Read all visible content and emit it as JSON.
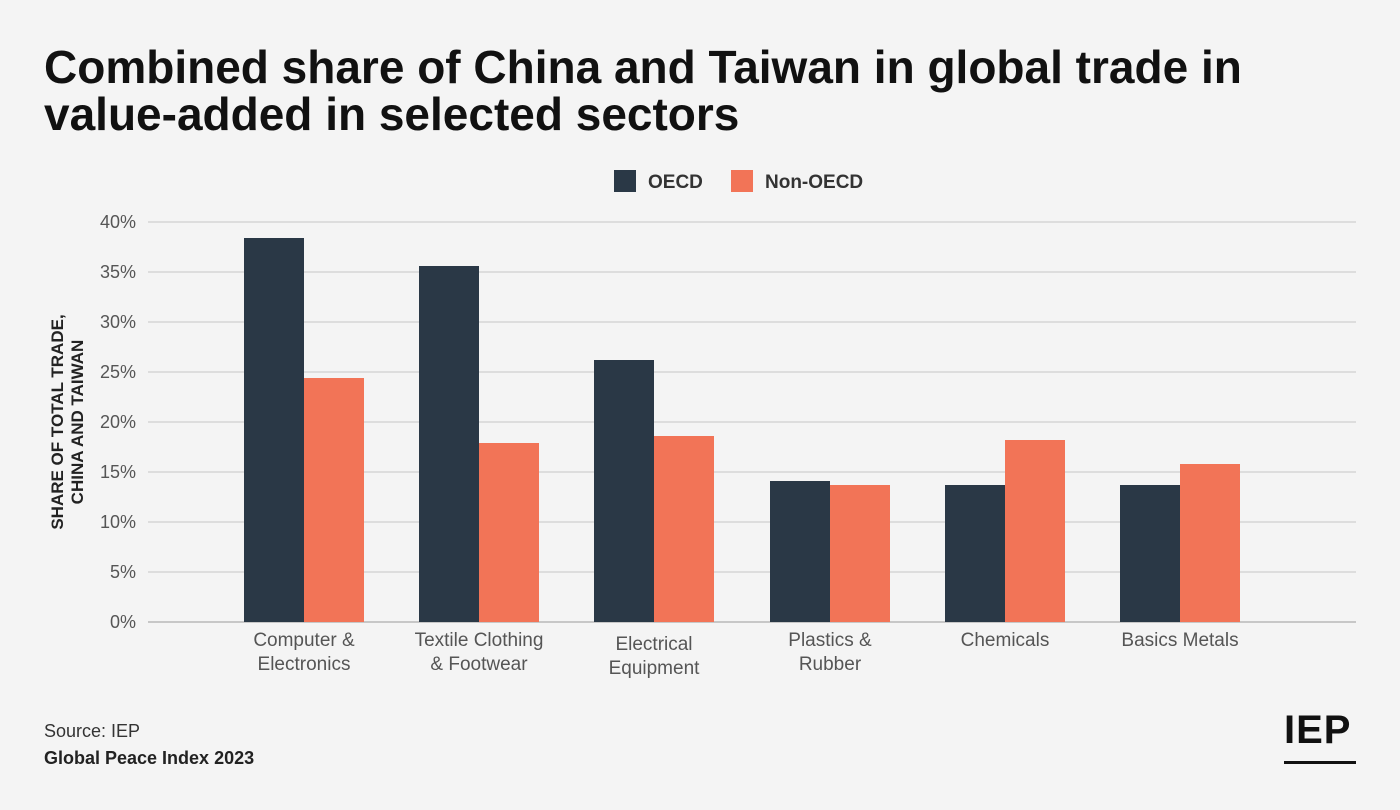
{
  "title": "Combined share of China and Taiwan in global trade in value-added in selected sectors",
  "chart_data": {
    "type": "bar",
    "categories": [
      [
        "Computer &",
        "Electronics"
      ],
      [
        "Textile Clothing",
        "& Footwear"
      ],
      [
        "Electrical",
        "Equipment"
      ],
      [
        "Plastics &",
        "Rubber"
      ],
      [
        "Chemicals"
      ],
      [
        "Basics Metals"
      ]
    ],
    "series": [
      {
        "name": "OECD",
        "color": "#2a3846",
        "values": [
          38.4,
          35.6,
          26.2,
          14.1,
          13.7,
          13.7
        ]
      },
      {
        "name": "Non-OECD",
        "color": "#f27457",
        "values": [
          24.4,
          17.9,
          18.6,
          13.7,
          18.2,
          15.8
        ]
      }
    ],
    "ylabel": [
      "SHARE OF TOTAL TRADE,",
      "CHINA AND TAIWAN"
    ],
    "ylim": [
      0,
      40
    ],
    "yticks": [
      0,
      5,
      10,
      15,
      20,
      25,
      30,
      35,
      40
    ],
    "ytick_labels": [
      "0%",
      "5%",
      "10%",
      "15%",
      "20%",
      "25%",
      "30%",
      "35%",
      "40%"
    ],
    "grid": true,
    "legend_position": "top-center"
  },
  "footer": {
    "source": "Source: IEP",
    "publication": "Global Peace Index 2023",
    "logo": "IEP"
  }
}
